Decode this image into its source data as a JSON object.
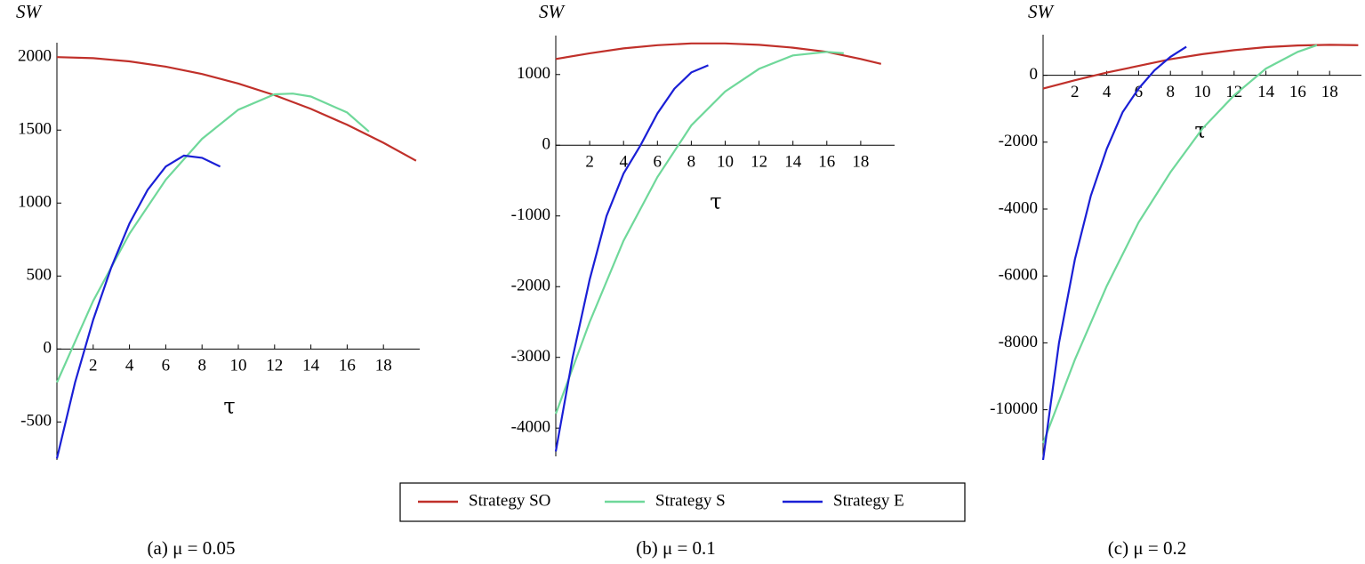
{
  "chart_data": [
    {
      "type": "line",
      "y_label": "SW",
      "x_label": "τ",
      "caption": "(a)  μ = 0.05",
      "xlim": [
        0,
        20
      ],
      "ylim": [
        -760,
        2050
      ],
      "xticks": [
        2,
        4,
        6,
        8,
        10,
        12,
        14,
        16,
        18
      ],
      "yticks": [
        -500,
        0,
        500,
        1000,
        1500,
        2000
      ],
      "series": [
        {
          "name": "Strategy SO",
          "color": "#c0302a",
          "x": [
            0,
            2,
            4,
            6,
            8,
            10,
            12,
            14,
            16,
            18,
            19.8
          ],
          "values": [
            2000,
            1993,
            1971,
            1935,
            1884,
            1819,
            1739,
            1645,
            1536,
            1413,
            1290
          ]
        },
        {
          "name": "Strategy S",
          "color": "#6fd89a",
          "x": [
            0,
            2,
            4,
            6,
            8,
            10,
            12,
            13,
            14,
            16,
            17.2
          ],
          "values": [
            -230,
            330,
            790,
            1160,
            1440,
            1640,
            1745,
            1750,
            1730,
            1620,
            1490
          ]
        },
        {
          "name": "Strategy E",
          "color": "#1a1fd6",
          "x": [
            0,
            1,
            2,
            3,
            4,
            5,
            6,
            7,
            8,
            9
          ],
          "values": [
            -750,
            -230,
            200,
            560,
            860,
            1090,
            1250,
            1325,
            1310,
            1250
          ]
        }
      ]
    },
    {
      "type": "line",
      "y_label": "SW",
      "x_label": "τ",
      "caption": "(b)  μ = 0.1",
      "xlim": [
        0,
        20
      ],
      "ylim": [
        -4400,
        1450
      ],
      "xticks": [
        2,
        4,
        6,
        8,
        10,
        12,
        14,
        16,
        18
      ],
      "yticks": [
        -4000,
        -3000,
        -2000,
        -1000,
        0,
        1000
      ],
      "series": [
        {
          "color": "#c0302a",
          "x": [
            0,
            2,
            4,
            6,
            8,
            10,
            12,
            14,
            16,
            18,
            19.2
          ],
          "values": [
            1220,
            1300,
            1370,
            1415,
            1440,
            1440,
            1420,
            1380,
            1320,
            1220,
            1150
          ]
        },
        {
          "color": "#6fd89a",
          "x": [
            0,
            2,
            4,
            6,
            8,
            10,
            12,
            14,
            16,
            17
          ],
          "values": [
            -3800,
            -2500,
            -1350,
            -450,
            280,
            760,
            1080,
            1270,
            1320,
            1300
          ]
        },
        {
          "color": "#1a1fd6",
          "x": [
            0,
            1,
            2,
            3,
            4,
            5,
            6,
            7,
            8,
            9
          ],
          "values": [
            -4330,
            -3000,
            -1900,
            -1000,
            -400,
            0,
            450,
            800,
            1030,
            1130
          ]
        }
      ]
    },
    {
      "type": "line",
      "y_label": "SW",
      "x_label": "τ",
      "caption": "(c)  μ = 0.2",
      "xlim": [
        0,
        20
      ],
      "ylim": [
        -11500,
        1000
      ],
      "xticks": [
        2,
        4,
        6,
        8,
        10,
        12,
        14,
        16,
        18
      ],
      "yticks": [
        -10000,
        -8000,
        -6000,
        -4000,
        -2000,
        0
      ],
      "series": [
        {
          "color": "#c0302a",
          "x": [
            0,
            2,
            4,
            6,
            8,
            10,
            12,
            14,
            16,
            18,
            19.8
          ],
          "values": [
            -400,
            -150,
            80,
            280,
            480,
            630,
            750,
            840,
            890,
            910,
            900
          ]
        },
        {
          "color": "#6fd89a",
          "x": [
            0,
            2,
            4,
            6,
            8,
            10,
            12,
            14,
            16,
            17.2
          ],
          "values": [
            -11000,
            -8500,
            -6300,
            -4400,
            -2900,
            -1600,
            -600,
            200,
            700,
            900
          ]
        },
        {
          "color": "#1a1fd6",
          "x": [
            0,
            1,
            2,
            3,
            4,
            5,
            6,
            7,
            8,
            9
          ],
          "values": [
            -11500,
            -8000,
            -5500,
            -3600,
            -2200,
            -1100,
            -400,
            150,
            550,
            850
          ]
        }
      ]
    }
  ]
}
